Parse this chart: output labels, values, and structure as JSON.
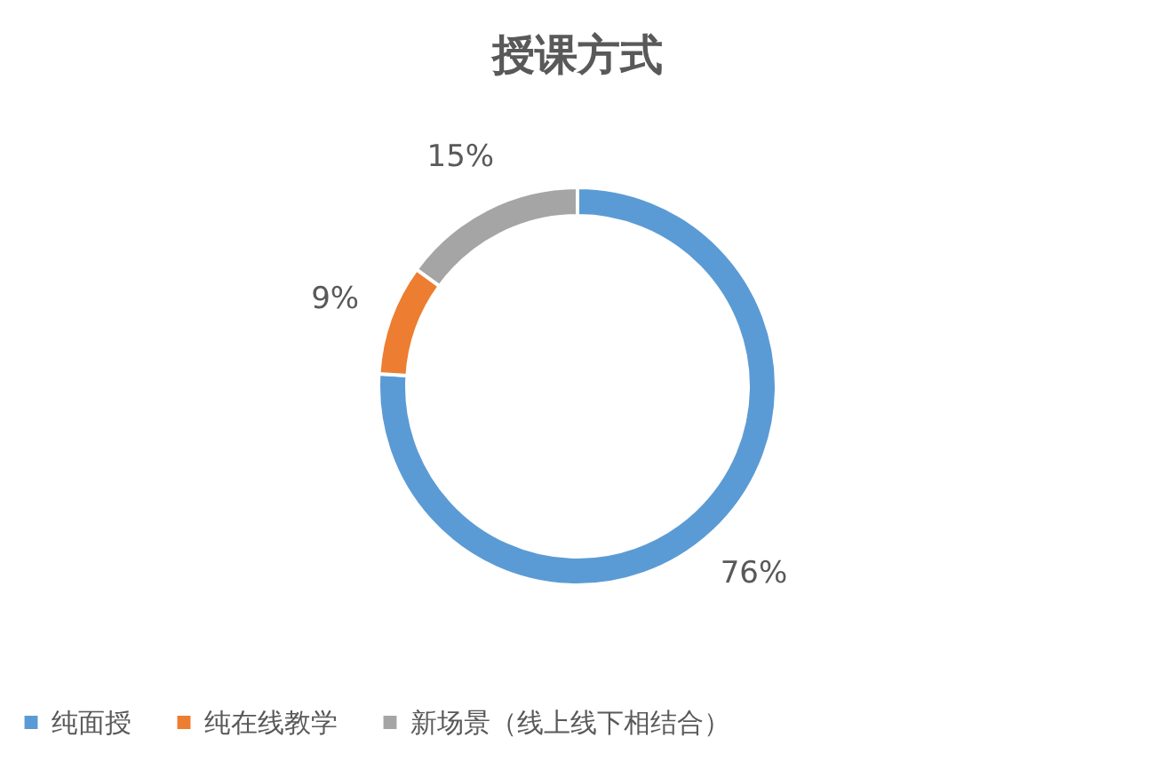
{
  "chart_data": {
    "type": "donut",
    "title": "授课方式",
    "categories": [
      "纯面授",
      "纯在线教学",
      "新场景（线上线下相结合）"
    ],
    "values": [
      76,
      9,
      15
    ],
    "colors": [
      "#5b9bd5",
      "#ed7d31",
      "#a5a5a5"
    ],
    "value_labels": [
      "76%",
      "9%",
      "15%"
    ],
    "legend": "bottom"
  }
}
